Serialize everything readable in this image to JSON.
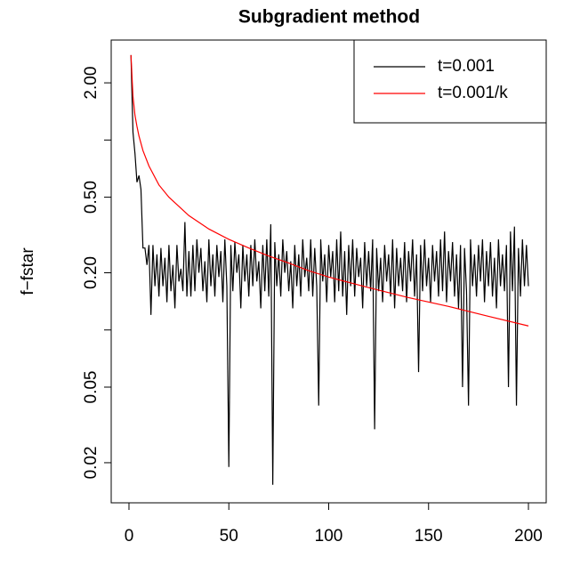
{
  "chart_data": {
    "type": "line",
    "title": "Subgradient method",
    "ylabel": "f−fstar",
    "log_y": true,
    "legend": "top-right",
    "xlim": [
      -8.9,
      208.9
    ],
    "xticks": [
      0,
      50,
      100,
      150,
      200
    ],
    "ylim": [
      0.0123,
      3.36
    ],
    "yticks": [
      {
        "value": 0.02,
        "label": "0.02"
      },
      {
        "value": 0.05,
        "label": "0.05"
      },
      {
        "value": 0.1,
        "label": null
      },
      {
        "value": 0.2,
        "label": "0.20"
      },
      {
        "value": 0.5,
        "label": "0.50"
      },
      {
        "value": 1,
        "label": null
      },
      {
        "value": 2,
        "label": "2.00"
      }
    ],
    "series": [
      {
        "name": "t=0.001",
        "color": "#000000",
        "x": [
          1,
          2,
          3,
          4,
          5,
          6,
          7,
          8,
          9,
          10,
          11,
          12,
          13,
          14,
          15,
          16,
          17,
          18,
          19,
          20,
          21,
          22,
          23,
          24,
          25,
          26,
          27,
          28,
          29,
          30,
          31,
          32,
          33,
          34,
          35,
          36,
          37,
          38,
          39,
          40,
          41,
          42,
          43,
          44,
          45,
          46,
          47,
          48,
          49,
          50,
          51,
          52,
          53,
          54,
          55,
          56,
          57,
          58,
          59,
          60,
          61,
          62,
          63,
          64,
          65,
          66,
          67,
          68,
          69,
          70,
          71,
          72,
          73,
          74,
          75,
          76,
          77,
          78,
          79,
          80,
          81,
          82,
          83,
          84,
          85,
          86,
          87,
          88,
          89,
          90,
          91,
          92,
          93,
          94,
          95,
          96,
          97,
          98,
          99,
          100,
          101,
          102,
          103,
          104,
          105,
          106,
          107,
          108,
          109,
          110,
          111,
          112,
          113,
          114,
          115,
          116,
          117,
          118,
          119,
          120,
          121,
          122,
          123,
          124,
          125,
          126,
          127,
          128,
          129,
          130,
          131,
          132,
          133,
          134,
          135,
          136,
          137,
          138,
          139,
          140,
          141,
          142,
          143,
          144,
          145,
          146,
          147,
          148,
          149,
          150,
          151,
          152,
          153,
          154,
          155,
          156,
          157,
          158,
          159,
          160,
          161,
          162,
          163,
          164,
          165,
          166,
          167,
          168,
          169,
          170,
          171,
          172,
          173,
          174,
          175,
          176,
          177,
          178,
          179,
          180,
          181,
          182,
          183,
          184,
          185,
          186,
          187,
          188,
          189,
          190,
          191,
          192,
          193,
          194,
          195,
          196,
          197,
          198,
          199,
          200
        ],
        "values": [
          2.8,
          1.1,
          0.85,
          0.6,
          0.65,
          0.55,
          0.27,
          0.27,
          0.22,
          0.28,
          0.12,
          0.28,
          0.17,
          0.25,
          0.15,
          0.27,
          0.17,
          0.24,
          0.14,
          0.28,
          0.16,
          0.22,
          0.13,
          0.28,
          0.18,
          0.21,
          0.16,
          0.37,
          0.15,
          0.26,
          0.15,
          0.28,
          0.16,
          0.3,
          0.2,
          0.27,
          0.16,
          0.23,
          0.14,
          0.3,
          0.17,
          0.25,
          0.15,
          0.28,
          0.19,
          0.26,
          0.14,
          0.3,
          0.17,
          0.019,
          0.28,
          0.16,
          0.29,
          0.2,
          0.25,
          0.13,
          0.28,
          0.18,
          0.25,
          0.15,
          0.28,
          0.17,
          0.3,
          0.18,
          0.23,
          0.13,
          0.28,
          0.16,
          0.3,
          0.15,
          0.36,
          0.0153,
          0.29,
          0.17,
          0.25,
          0.15,
          0.3,
          0.2,
          0.26,
          0.16,
          0.23,
          0.13,
          0.28,
          0.17,
          0.25,
          0.15,
          0.3,
          0.19,
          0.24,
          0.16,
          0.3,
          0.15,
          0.27,
          0.17,
          0.04,
          0.3,
          0.18,
          0.25,
          0.14,
          0.28,
          0.19,
          0.26,
          0.14,
          0.3,
          0.16,
          0.33,
          0.15,
          0.26,
          0.12,
          0.28,
          0.17,
          0.3,
          0.15,
          0.27,
          0.19,
          0.24,
          0.13,
          0.29,
          0.17,
          0.26,
          0.16,
          0.3,
          0.03,
          0.27,
          0.16,
          0.24,
          0.14,
          0.28,
          0.18,
          0.25,
          0.15,
          0.3,
          0.13,
          0.27,
          0.17,
          0.24,
          0.16,
          0.29,
          0.14,
          0.26,
          0.18,
          0.3,
          0.15,
          0.25,
          0.06,
          0.28,
          0.16,
          0.3,
          0.17,
          0.24,
          0.14,
          0.28,
          0.18,
          0.26,
          0.15,
          0.3,
          0.16,
          0.33,
          0.14,
          0.26,
          0.18,
          0.29,
          0.15,
          0.25,
          0.13,
          0.28,
          0.05,
          0.27,
          0.16,
          0.04,
          0.3,
          0.17,
          0.25,
          0.15,
          0.28,
          0.18,
          0.3,
          0.14,
          0.26,
          0.17,
          0.29,
          0.15,
          0.24,
          0.13,
          0.3,
          0.17,
          0.25,
          0.16,
          0.28,
          0.05,
          0.33,
          0.16,
          0.35,
          0.04,
          0.27,
          0.15,
          0.3,
          0.17,
          0.28,
          0.17
        ]
      },
      {
        "name": "t=0.001/k",
        "color": "#ff0000",
        "x": [
          1,
          2,
          3,
          4,
          5,
          7,
          10,
          15,
          20,
          30,
          40,
          50,
          60,
          70,
          80,
          90,
          100,
          120,
          140,
          160,
          180,
          200
        ],
        "values": [
          2.8,
          1.7,
          1.35,
          1.18,
          1.05,
          0.88,
          0.73,
          0.58,
          0.5,
          0.4,
          0.34,
          0.3,
          0.27,
          0.245,
          0.225,
          0.205,
          0.19,
          0.167,
          0.148,
          0.133,
          0.118,
          0.105
        ]
      }
    ]
  }
}
